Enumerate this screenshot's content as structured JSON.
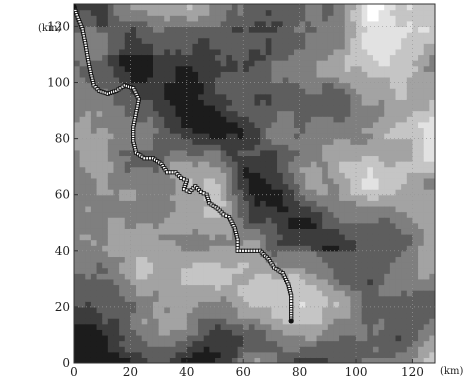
{
  "map": {
    "x_unit": "(km)",
    "y_unit": "(km)",
    "x_ticks": [
      "0",
      "20",
      "40",
      "60",
      "80",
      "100",
      "120"
    ],
    "y_ticks": [
      "0",
      "20",
      "40",
      "60",
      "80",
      "100",
      "120"
    ],
    "x_range": [
      0,
      128
    ],
    "y_range": [
      0,
      128
    ],
    "grid": true,
    "colors": {
      "terrain_dark": "#1c1c1c",
      "terrain_light": "#ffffff",
      "planned_path": "#3b4fb0",
      "waypoints": "#111111"
    },
    "path_km": [
      [
        0,
        127
      ],
      [
        1,
        124
      ],
      [
        3,
        119
      ],
      [
        4,
        114
      ],
      [
        5,
        108
      ],
      [
        6,
        103
      ],
      [
        7,
        99
      ],
      [
        9,
        97
      ],
      [
        12,
        96
      ],
      [
        15,
        97
      ],
      [
        18,
        99
      ],
      [
        21,
        98
      ],
      [
        23,
        94
      ],
      [
        22,
        89
      ],
      [
        21,
        84
      ],
      [
        21,
        79
      ],
      [
        22,
        75
      ],
      [
        25,
        73
      ],
      [
        28,
        73
      ],
      [
        31,
        71
      ],
      [
        33,
        68
      ],
      [
        36,
        68
      ],
      [
        38,
        66
      ],
      [
        40,
        65
      ],
      [
        39,
        62
      ],
      [
        41,
        61
      ],
      [
        43,
        63
      ],
      [
        45,
        61
      ],
      [
        47,
        60
      ],
      [
        48,
        57
      ],
      [
        51,
        55
      ],
      [
        53,
        53
      ],
      [
        55,
        52
      ],
      [
        57,
        48
      ],
      [
        58,
        44
      ],
      [
        58,
        40
      ],
      [
        62,
        40
      ],
      [
        66,
        40
      ],
      [
        69,
        37
      ],
      [
        71,
        34
      ],
      [
        74,
        32
      ],
      [
        76,
        28
      ],
      [
        77,
        24
      ],
      [
        77,
        20
      ],
      [
        77,
        15
      ]
    ]
  }
}
